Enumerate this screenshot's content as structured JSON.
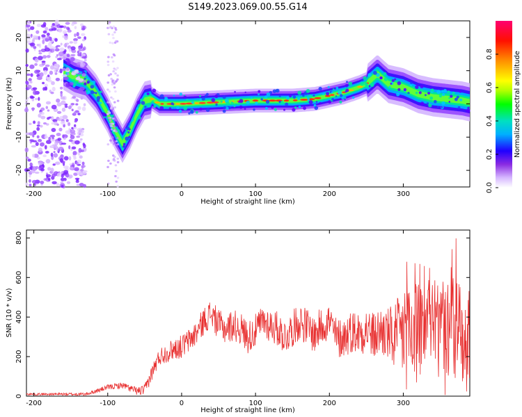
{
  "title": "S149.2023.069.00.55.G14",
  "chart_data": [
    {
      "type": "heatmap",
      "xlabel": "Height of straight line (km)",
      "ylabel": "Frequency (Hz)",
      "xlim": [
        -210,
        390
      ],
      "ylim": [
        -25,
        25
      ],
      "xticks": [
        -200,
        -100,
        0,
        100,
        200,
        300
      ],
      "yticks": [
        -20,
        -10,
        0,
        10,
        20
      ],
      "colorbar": {
        "label": "Normalized spectral amplitude",
        "range": [
          0.0,
          1.0
        ],
        "ticks": [
          "0.0",
          "0.2",
          "0.4",
          "0.6",
          "0.8"
        ],
        "colors": [
          "#ffffff",
          "#b36bff",
          "#6a00ff",
          "#0000ff",
          "#00c0ff",
          "#00e0a0",
          "#00ff00",
          "#c8ff00",
          "#ffff00",
          "#ff8000",
          "#ff0000",
          "#ff0066"
        ]
      },
      "ridge": {
        "x": [
          -160,
          -145,
          -130,
          -115,
          -100,
          -90,
          -80,
          -70,
          -60,
          -50,
          -40,
          -30,
          -20,
          0,
          50,
          100,
          150,
          180,
          200,
          220,
          240,
          250,
          260,
          265,
          280,
          300,
          320,
          340,
          360,
          380,
          390
        ],
        "y": [
          10,
          8,
          7,
          3,
          -3,
          -8,
          -12,
          -8,
          -3,
          1,
          1.5,
          0,
          0,
          0,
          0.5,
          1,
          1,
          1.5,
          2.5,
          3.5,
          5,
          6,
          8,
          9,
          6,
          5,
          3,
          2,
          1.5,
          1,
          0.5
        ]
      }
    },
    {
      "type": "line",
      "xlabel": "Height of straight line (km)",
      "ylabel": "SNR (10 * v/v)",
      "xlim": [
        -210,
        390
      ],
      "ylim": [
        0,
        840
      ],
      "xticks": [
        -200,
        -100,
        0,
        100,
        200,
        300
      ],
      "yticks": [
        0,
        200,
        400,
        600,
        800
      ],
      "line_color": "#e83030",
      "envelope": {
        "x": [
          -210,
          -130,
          -120,
          -100,
          -80,
          -60,
          -50,
          -40,
          -30,
          -20,
          -10,
          0,
          10,
          20,
          30,
          40,
          50,
          60,
          70,
          80,
          90,
          100,
          110,
          120,
          130,
          140,
          150,
          160,
          170,
          180,
          190,
          200,
          210,
          220,
          230,
          240,
          250,
          260,
          270,
          280,
          290,
          300,
          310,
          320,
          330,
          340,
          350,
          360,
          370,
          380,
          390
        ],
        "y": [
          10,
          10,
          20,
          45,
          55,
          25,
          30,
          120,
          200,
          220,
          240,
          250,
          280,
          320,
          380,
          420,
          360,
          340,
          360,
          340,
          300,
          330,
          380,
          360,
          340,
          300,
          340,
          380,
          350,
          310,
          360,
          380,
          290,
          300,
          330,
          320,
          340,
          300,
          330,
          310,
          290,
          320,
          350,
          340,
          330,
          360,
          320,
          340,
          310,
          330,
          320
        ]
      },
      "spread": {
        "x": [
          -210,
          -130,
          -60,
          -40,
          0,
          60,
          200,
          255,
          280,
          300,
          390
        ],
        "y": [
          5,
          8,
          20,
          40,
          60,
          80,
          100,
          120,
          140,
          240,
          260
        ]
      }
    }
  ]
}
